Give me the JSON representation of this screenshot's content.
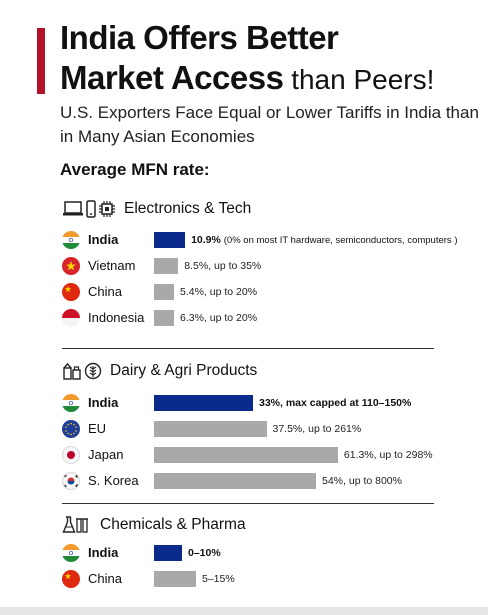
{
  "title": {
    "line1": "India Offers Better",
    "line2_bold": "Market Access",
    "line2_normal": " than Peers!"
  },
  "subtitle": "U.S. Exporters Face Equal or Lower Tariffs in India than in Many Asian Economies",
  "mfn_label": "Average MFN rate:",
  "colors": {
    "accent": "#b3122a",
    "india_bar": "#0a2a8c",
    "peer_bar": "#a9a9a9"
  },
  "chart_data": [
    {
      "type": "bar",
      "section": "Electronics & Tech",
      "icons": [
        "laptop-icon",
        "phone-icon",
        "chip-icon"
      ],
      "categories": [
        "India",
        "Vietnam",
        "China",
        "Indonesia"
      ],
      "values": [
        10.9,
        8.5,
        5.4,
        6.3
      ],
      "labels": [
        "10.9%",
        "8.5%, up to 35%",
        "5.4%, up to 20%",
        "6.3%, up to 20%"
      ],
      "notes": [
        "(0% on most IT hardware, semiconductors, computers )",
        "",
        "",
        ""
      ]
    },
    {
      "type": "bar",
      "section": "Dairy & Agri Products",
      "icons": [
        "milk-carton-icon",
        "grain-icon"
      ],
      "categories": [
        "India",
        "EU",
        "Japan",
        "S. Korea"
      ],
      "values": [
        33,
        37.5,
        61.3,
        54
      ],
      "labels": [
        "33%, max capped at 110–150%",
        "37.5%, up to 261%",
        "61.3%, up to 298%",
        "54%, up to 800%"
      ],
      "notes": [
        "",
        "",
        "",
        ""
      ]
    },
    {
      "type": "bar",
      "section": "Chemicals & Pharma",
      "icons": [
        "flask-icon"
      ],
      "categories": [
        "India",
        "China"
      ],
      "values": [
        10,
        15
      ],
      "labels": [
        "0–10%",
        "5–15%"
      ],
      "notes": [
        "",
        ""
      ]
    }
  ]
}
